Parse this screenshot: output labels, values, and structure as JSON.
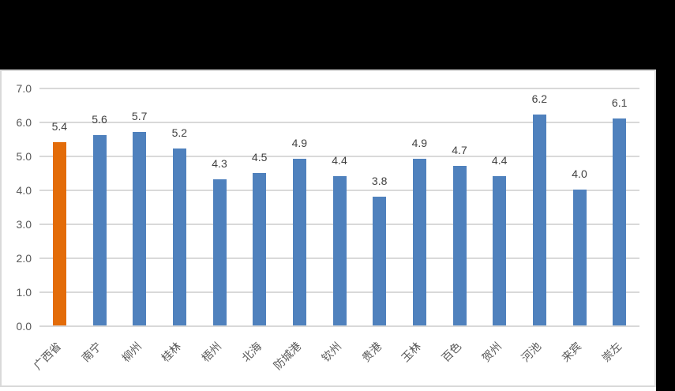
{
  "window": {
    "backdrop_color": "#000000"
  },
  "chart": {
    "canvas_bg": "#FFFFFF",
    "frame_border_color": "#D9D9D9",
    "gridline_color": "#D9D9D9",
    "axis_label_color": "#595959",
    "value_label_color": "#404040"
  },
  "chart_data": {
    "type": "bar",
    "title": "",
    "xlabel": "",
    "ylabel": "",
    "categories": [
      "广西省",
      "南宁",
      "柳州",
      "桂林",
      "梧州",
      "北海",
      "防城港",
      "钦州",
      "贵港",
      "玉林",
      "百色",
      "贺州",
      "河池",
      "来宾",
      "崇左"
    ],
    "values": [
      5.4,
      5.6,
      5.7,
      5.2,
      4.3,
      4.5,
      4.9,
      4.4,
      3.8,
      4.9,
      4.7,
      4.4,
      6.2,
      4.0,
      6.1
    ],
    "data_labels": [
      "5.4",
      "5.6",
      "5.7",
      "5.2",
      "4.3",
      "4.5",
      "4.9",
      "4.4",
      "3.8",
      "4.9",
      "4.7",
      "4.4",
      "6.2",
      "4.0",
      "6.1"
    ],
    "ytick_labels": [
      "0.0",
      "1.0",
      "2.0",
      "3.0",
      "4.0",
      "5.0",
      "6.0",
      "7.0"
    ],
    "ylim": [
      0,
      7
    ],
    "ytick_step": 1,
    "grid": true,
    "legend": false,
    "x_label_rotation_deg": 45,
    "series_color": "#4F81BD",
    "highlight_color": "#E36C09",
    "highlight_index": 0,
    "highlight_category": "广西省"
  }
}
